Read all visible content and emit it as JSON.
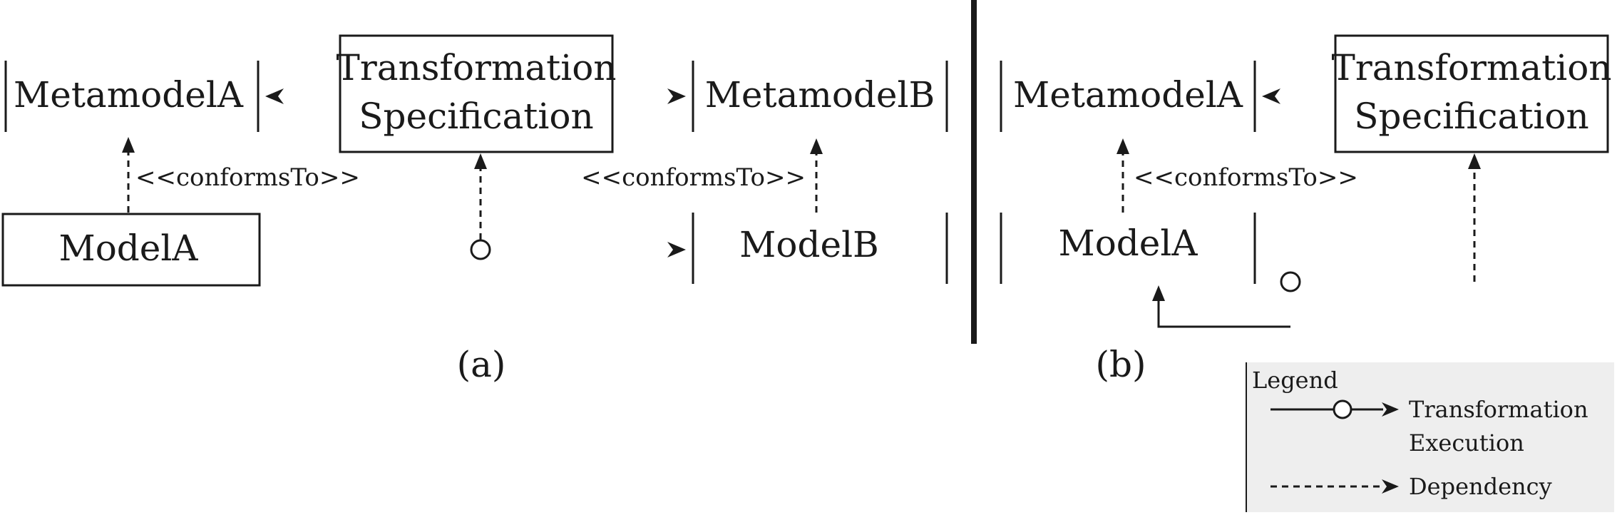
{
  "diagram_a": {
    "metamodel_a": "MetamodelA",
    "transformation_spec_line1": "Transformation",
    "transformation_spec_line2": "Specification",
    "metamodel_b": "MetamodelB",
    "model_a": "ModelA",
    "model_b": "ModelB",
    "conforms_left": "<<conformsTo>>",
    "conforms_right": "<<conformsTo>>",
    "caption": "(a)"
  },
  "diagram_b": {
    "metamodel_a": "MetamodelA",
    "transformation_spec_line1": "Transformation",
    "transformation_spec_line2": "Specification",
    "model_a": "ModelA",
    "conforms": "<<conformsTo>>",
    "caption": "(b)"
  },
  "legend": {
    "title": "Legend",
    "transformation_line1": "Transformation",
    "transformation_line2": "Execution",
    "dependency": "Dependency",
    "background": "#eeeeee"
  }
}
